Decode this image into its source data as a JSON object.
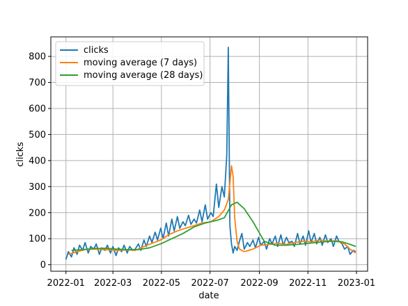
{
  "chart_data": {
    "type": "line",
    "title": "",
    "xlabel": "date",
    "ylabel": "clicks",
    "xlim": [
      "2021-12-13",
      "2023-01-15"
    ],
    "ylim": [
      -25,
      875
    ],
    "grid": true,
    "legend_position": "upper-left",
    "x_ticks": [
      "2022-01-01",
      "2022-03-01",
      "2022-05-01",
      "2022-07-01",
      "2022-09-01",
      "2022-11-01",
      "2023-01-01"
    ],
    "x_tick_labels": [
      "2022-01",
      "2022-03",
      "2022-05",
      "2022-07",
      "2022-09",
      "2022-11",
      "2023-01"
    ],
    "y_ticks": [
      0,
      100,
      200,
      300,
      400,
      500,
      600,
      700,
      800
    ],
    "series": [
      {
        "name": "clicks",
        "color": "#1f77b4",
        "x": [
          "2022-01-01",
          "2022-01-04",
          "2022-01-08",
          "2022-01-11",
          "2022-01-15",
          "2022-01-18",
          "2022-01-22",
          "2022-01-25",
          "2022-01-29",
          "2022-02-01",
          "2022-02-05",
          "2022-02-08",
          "2022-02-12",
          "2022-02-15",
          "2022-02-19",
          "2022-02-22",
          "2022-02-26",
          "2022-03-01",
          "2022-03-05",
          "2022-03-08",
          "2022-03-12",
          "2022-03-15",
          "2022-03-19",
          "2022-03-22",
          "2022-03-26",
          "2022-03-29",
          "2022-04-02",
          "2022-04-05",
          "2022-04-09",
          "2022-04-12",
          "2022-04-16",
          "2022-04-19",
          "2022-04-23",
          "2022-04-26",
          "2022-04-30",
          "2022-05-03",
          "2022-05-07",
          "2022-05-10",
          "2022-05-14",
          "2022-05-17",
          "2022-05-21",
          "2022-05-24",
          "2022-05-28",
          "2022-05-31",
          "2022-06-04",
          "2022-06-07",
          "2022-06-11",
          "2022-06-14",
          "2022-06-18",
          "2022-06-21",
          "2022-06-25",
          "2022-06-28",
          "2022-07-02",
          "2022-07-05",
          "2022-07-09",
          "2022-07-12",
          "2022-07-16",
          "2022-07-19",
          "2022-07-22",
          "2022-07-24",
          "2022-07-26",
          "2022-07-28",
          "2022-07-30",
          "2022-08-01",
          "2022-08-04",
          "2022-08-07",
          "2022-08-10",
          "2022-08-13",
          "2022-08-17",
          "2022-08-20",
          "2022-08-24",
          "2022-08-27",
          "2022-08-31",
          "2022-09-03",
          "2022-09-07",
          "2022-09-10",
          "2022-09-14",
          "2022-09-17",
          "2022-09-21",
          "2022-09-24",
          "2022-09-28",
          "2022-10-01",
          "2022-10-05",
          "2022-10-08",
          "2022-10-12",
          "2022-10-15",
          "2022-10-19",
          "2022-10-22",
          "2022-10-26",
          "2022-10-29",
          "2022-11-02",
          "2022-11-05",
          "2022-11-09",
          "2022-11-12",
          "2022-11-16",
          "2022-11-19",
          "2022-11-23",
          "2022-11-26",
          "2022-11-30",
          "2022-12-03",
          "2022-12-07",
          "2022-12-10",
          "2022-12-14",
          "2022-12-17",
          "2022-12-21",
          "2022-12-24",
          "2022-12-28",
          "2022-12-31"
        ],
        "y": [
          20,
          50,
          30,
          65,
          40,
          75,
          55,
          85,
          45,
          70,
          60,
          80,
          40,
          65,
          55,
          75,
          45,
          70,
          35,
          65,
          50,
          75,
          45,
          70,
          55,
          60,
          80,
          55,
          95,
          70,
          110,
          85,
          125,
          95,
          140,
          100,
          160,
          110,
          175,
          130,
          185,
          140,
          165,
          150,
          190,
          155,
          175,
          160,
          210,
          165,
          230,
          175,
          200,
          185,
          310,
          220,
          300,
          260,
          420,
          835,
          150,
          80,
          45,
          70,
          55,
          90,
          120,
          60,
          85,
          70,
          95,
          65,
          105,
          75,
          90,
          60,
          100,
          80,
          110,
          70,
          115,
          75,
          105,
          85,
          90,
          70,
          120,
          80,
          110,
          75,
          130,
          85,
          120,
          80,
          105,
          75,
          115,
          85,
          100,
          70,
          110,
          90,
          80,
          60,
          70,
          40,
          55,
          50
        ]
      },
      {
        "name": "moving average (7 days)",
        "color": "#ff7f0e",
        "x": [
          "2022-01-04",
          "2022-01-15",
          "2022-01-25",
          "2022-02-05",
          "2022-02-15",
          "2022-02-26",
          "2022-03-08",
          "2022-03-19",
          "2022-03-29",
          "2022-04-09",
          "2022-04-19",
          "2022-04-30",
          "2022-05-10",
          "2022-05-21",
          "2022-05-31",
          "2022-06-11",
          "2022-06-21",
          "2022-07-02",
          "2022-07-12",
          "2022-07-19",
          "2022-07-24",
          "2022-07-28",
          "2022-07-30",
          "2022-08-01",
          "2022-08-04",
          "2022-08-07",
          "2022-08-13",
          "2022-08-24",
          "2022-09-03",
          "2022-09-14",
          "2022-09-24",
          "2022-10-05",
          "2022-10-15",
          "2022-10-26",
          "2022-11-05",
          "2022-11-16",
          "2022-11-26",
          "2022-12-07",
          "2022-12-17",
          "2022-12-24",
          "2022-12-31"
        ],
        "y": [
          40,
          50,
          58,
          60,
          58,
          57,
          55,
          57,
          55,
          70,
          82,
          95,
          115,
          130,
          140,
          150,
          160,
          165,
          185,
          210,
          250,
          380,
          340,
          180,
          90,
          60,
          50,
          60,
          75,
          78,
          82,
          78,
          85,
          90,
          88,
          95,
          90,
          92,
          80,
          60,
          45
        ]
      },
      {
        "name": "moving average (28 days)",
        "color": "#2ca02c",
        "x": [
          "2022-01-08",
          "2022-01-22",
          "2022-02-05",
          "2022-02-19",
          "2022-03-05",
          "2022-03-19",
          "2022-04-02",
          "2022-04-16",
          "2022-04-30",
          "2022-05-14",
          "2022-05-28",
          "2022-06-11",
          "2022-06-25",
          "2022-07-09",
          "2022-07-19",
          "2022-07-28",
          "2022-08-04",
          "2022-08-13",
          "2022-08-24",
          "2022-09-07",
          "2022-09-21",
          "2022-10-05",
          "2022-10-19",
          "2022-11-02",
          "2022-11-16",
          "2022-11-30",
          "2022-12-14",
          "2022-12-24",
          "2022-12-31"
        ],
        "y": [
          55,
          58,
          62,
          63,
          60,
          58,
          58,
          65,
          80,
          100,
          120,
          145,
          160,
          170,
          180,
          230,
          240,
          215,
          165,
          90,
          75,
          75,
          78,
          82,
          87,
          90,
          88,
          78,
          70
        ]
      }
    ]
  }
}
